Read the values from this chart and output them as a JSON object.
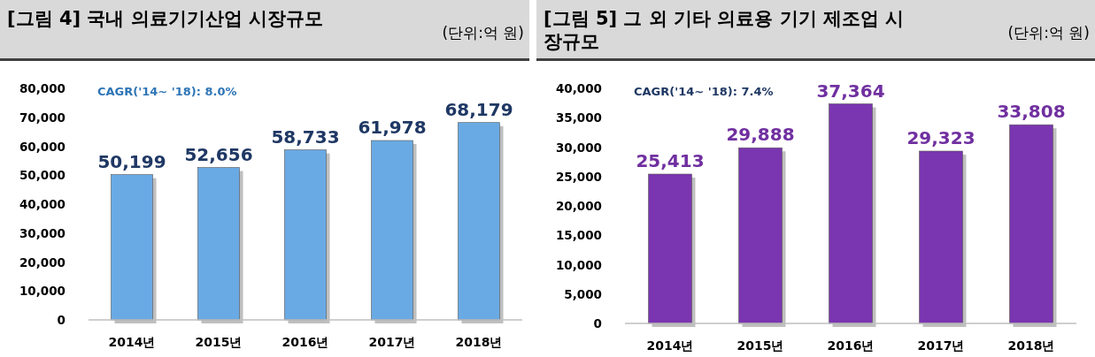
{
  "chart_data": [
    {
      "type": "bar",
      "title": "[그림 4] 국내 의료기기산업 시장규모",
      "subtitle": "(단위:억 원)",
      "annotations": [
        "CAGR('14~ '18): 8.0%"
      ],
      "categories": [
        "2014년",
        "2015년",
        "2016년",
        "2017년",
        "2018년"
      ],
      "values": [
        50199,
        52656,
        58733,
        61978,
        68179
      ],
      "value_labels": [
        "50,199",
        "52,656",
        "58,733",
        "61,978",
        "68,179"
      ],
      "color": "#6aaae4",
      "ylim": [
        0,
        80000
      ],
      "yticks": [
        {
          "value": 0,
          "label": "0"
        },
        {
          "value": 10000,
          "label": "10,000"
        },
        {
          "value": 20000,
          "label": "20,000"
        },
        {
          "value": 30000,
          "label": "30,000"
        },
        {
          "value": 40000,
          "label": "40,000"
        },
        {
          "value": 50000,
          "label": "50,000"
        },
        {
          "value": 60000,
          "label": "60,000"
        },
        {
          "value": 70000,
          "label": "70,000"
        },
        {
          "value": 80000,
          "label": "80,000"
        }
      ]
    },
    {
      "type": "bar",
      "title": "[그림 5] 그 외 기타 의료용 기기 제조업 시장규모",
      "subtitle": "(단위:억 원)",
      "annotations": [
        "CAGR('14~ '18): 7.4%"
      ],
      "categories": [
        "2014년",
        "2015년",
        "2016년",
        "2017년",
        "2018년"
      ],
      "values": [
        25413,
        29888,
        37364,
        29323,
        33808
      ],
      "value_labels": [
        "25,413",
        "29,888",
        "37,364",
        "29,323",
        "33,808"
      ],
      "color": "#7a35b0",
      "ylim": [
        0,
        40000
      ],
      "yticks": [
        {
          "value": 0,
          "label": "0"
        },
        {
          "value": 5000,
          "label": "5,000"
        },
        {
          "value": 10000,
          "label": "10,000"
        },
        {
          "value": 15000,
          "label": "15,000"
        },
        {
          "value": 20000,
          "label": "20,000"
        },
        {
          "value": 25000,
          "label": "25,000"
        },
        {
          "value": 30000,
          "label": "30,000"
        },
        {
          "value": 35000,
          "label": "35,000"
        },
        {
          "value": 40000,
          "label": "40,000"
        }
      ]
    }
  ]
}
